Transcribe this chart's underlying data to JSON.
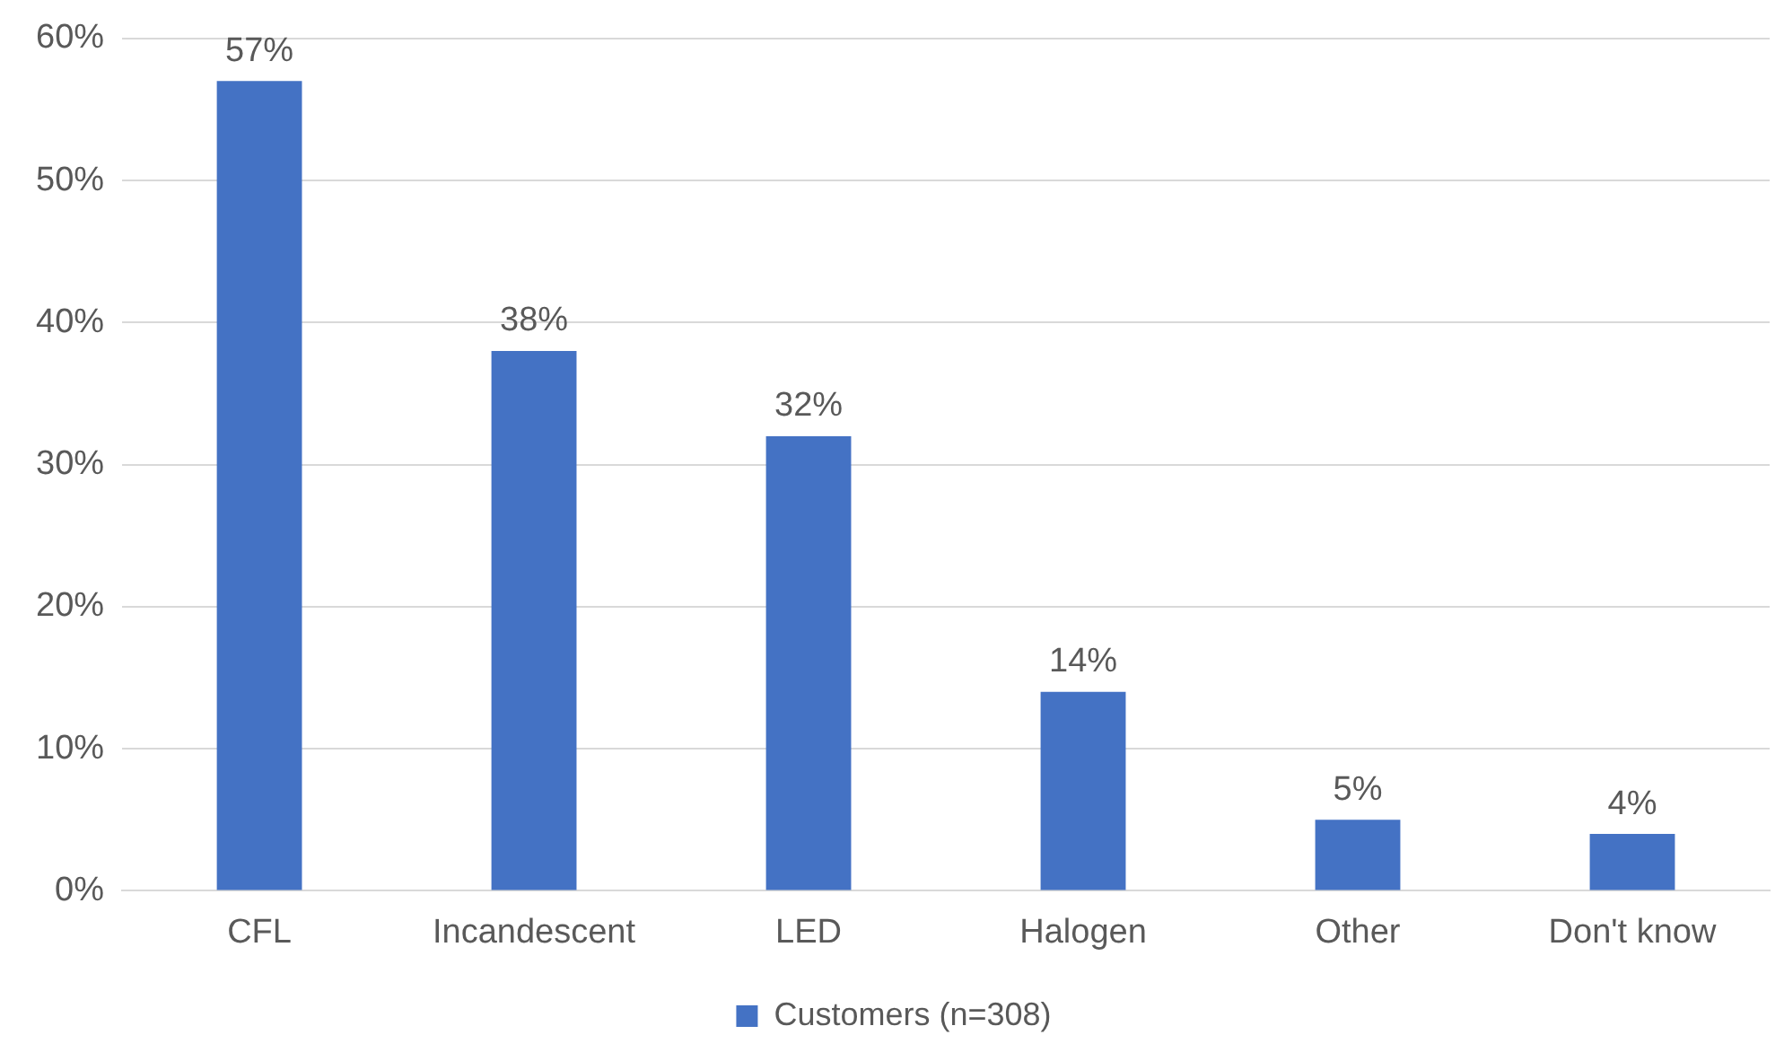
{
  "chart_data": {
    "type": "bar",
    "categories": [
      "CFL",
      "Incandescent",
      "LED",
      "Halogen",
      "Other",
      "Don't know"
    ],
    "series": [
      {
        "name": "Customers (n=308)",
        "color": "#4472c4",
        "values": [
          57,
          38,
          32,
          14,
          5,
          4
        ],
        "value_labels": [
          "57%",
          "38%",
          "32%",
          "14%",
          "5%",
          "4%"
        ]
      }
    ],
    "ylim": [
      0,
      60
    ],
    "yticks": [
      {
        "value": 0,
        "label": "0%"
      },
      {
        "value": 10,
        "label": "10%"
      },
      {
        "value": 20,
        "label": "20%"
      },
      {
        "value": 30,
        "label": "30%"
      },
      {
        "value": 40,
        "label": "40%"
      },
      {
        "value": 50,
        "label": "50%"
      },
      {
        "value": 60,
        "label": "60%"
      }
    ],
    "grid": "y",
    "legend": "bottom"
  }
}
